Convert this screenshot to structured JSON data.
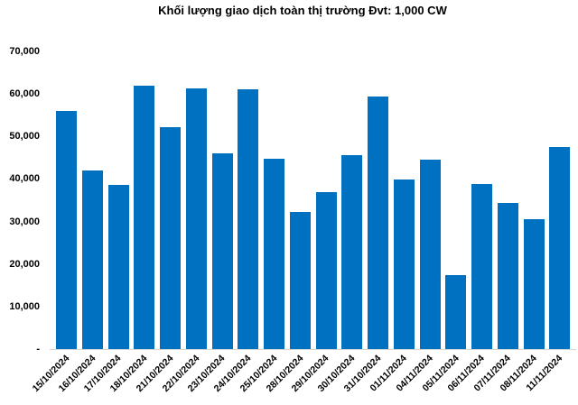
{
  "chart_data": {
    "type": "bar",
    "title": "Khối lượng giao dịch toàn thị trường Đvt: 1,000 CW",
    "categories": [
      "15/10/2024",
      "16/10/2024",
      "17/10/2024",
      "18/10/2024",
      "21/10/2024",
      "22/10/2024",
      "23/10/2024",
      "24/10/2024",
      "25/10/2024",
      "28/10/2024",
      "29/10/2024",
      "30/10/2024",
      "31/10/2024",
      "01/11/2024",
      "04/11/2024",
      "05/11/2024",
      "06/11/2024",
      "07/11/2024",
      "08/11/2024",
      "11/11/2024"
    ],
    "values": [
      56000,
      41900,
      38600,
      62000,
      52100,
      61400,
      46100,
      61000,
      44800,
      32200,
      36900,
      45700,
      59500,
      39900,
      44500,
      17400,
      38800,
      34300,
      30500,
      47500
    ],
    "y_ticks": [
      {
        "value": 70000,
        "label": "70,000"
      },
      {
        "value": 60000,
        "label": "60,000"
      },
      {
        "value": 50000,
        "label": "50,000"
      },
      {
        "value": 40000,
        "label": "40,000"
      },
      {
        "value": 30000,
        "label": "30,000"
      },
      {
        "value": 20000,
        "label": "20,000"
      },
      {
        "value": 10000,
        "label": "10,000"
      },
      {
        "value": 0,
        "label": "-"
      }
    ],
    "ylim": [
      0,
      70000
    ],
    "xlabel": "",
    "ylabel": "",
    "bar_color": "#0070c0",
    "axis_line_color": "#d6d6d6",
    "grid": "off",
    "legend_position": "none",
    "x_label_rotation": -45
  }
}
